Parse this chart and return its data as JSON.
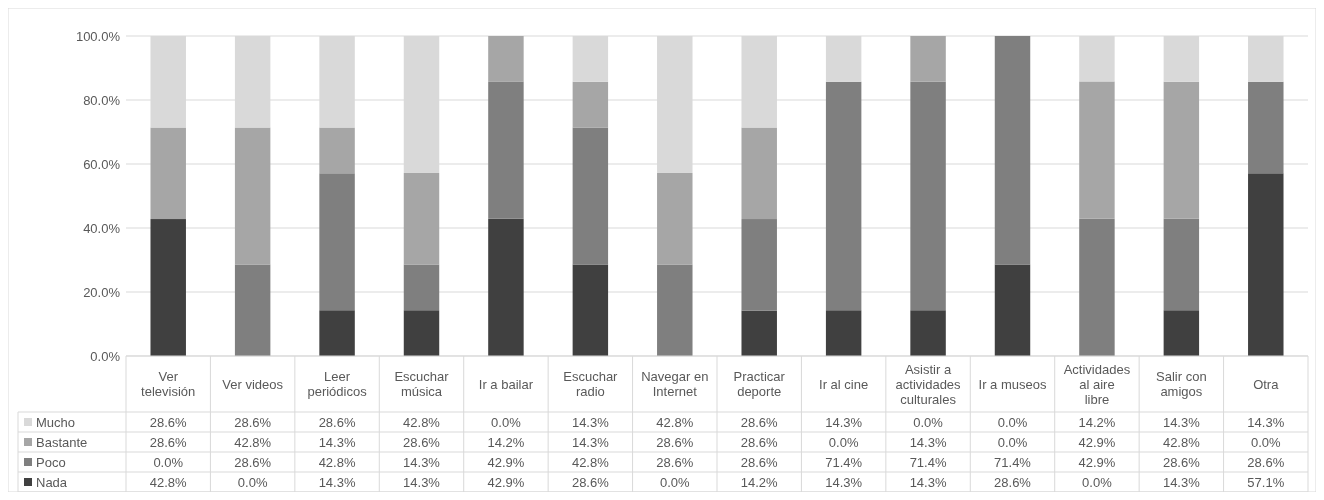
{
  "chart_data": {
    "type": "bar",
    "stacked": true,
    "categories": [
      "Ver televisión",
      "Ver videos",
      "Leer periódicos",
      "Escuchar música",
      "Ir a bailar",
      "Escuchar radio",
      "Navegar en Internet",
      "Practicar deporte",
      "Ir al cine",
      "Asistir a actividades culturales",
      "Ir a museos",
      "Actividades al aire libre",
      "Salir con amigos",
      "Otra"
    ],
    "series": [
      {
        "name": "Nada",
        "color": "#404040",
        "values": [
          42.8,
          0.0,
          14.3,
          14.3,
          42.9,
          28.6,
          0.0,
          14.2,
          14.3,
          14.3,
          28.6,
          0.0,
          14.3,
          57.1
        ],
        "value_labels": [
          "42.8%",
          "0.0%",
          "14.3%",
          "14.3%",
          "42.9%",
          "28.6%",
          "0.0%",
          "14.2%",
          "14.3%",
          "14.3%",
          "28.6%",
          "0.0%",
          "14.3%",
          "57.1%"
        ]
      },
      {
        "name": "Poco",
        "color": "#7f7f7f",
        "values": [
          0.0,
          28.6,
          42.8,
          14.3,
          42.9,
          42.8,
          28.6,
          28.6,
          71.4,
          71.4,
          71.4,
          42.9,
          28.6,
          28.6
        ],
        "value_labels": [
          "0.0%",
          "28.6%",
          "42.8%",
          "14.3%",
          "42.9%",
          "42.8%",
          "28.6%",
          "28.6%",
          "71.4%",
          "71.4%",
          "71.4%",
          "42.9%",
          "28.6%",
          "28.6%"
        ]
      },
      {
        "name": "Bastante",
        "color": "#a6a6a6",
        "values": [
          28.6,
          42.8,
          14.3,
          28.6,
          14.2,
          14.3,
          28.6,
          28.6,
          0.0,
          14.3,
          0.0,
          42.9,
          42.8,
          0.0
        ],
        "value_labels": [
          "28.6%",
          "42.8%",
          "14.3%",
          "28.6%",
          "14.2%",
          "14.3%",
          "28.6%",
          "28.6%",
          "0.0%",
          "14.3%",
          "0.0%",
          "42.9%",
          "42.8%",
          "0.0%"
        ]
      },
      {
        "name": "Mucho",
        "color": "#d9d9d9",
        "values": [
          28.6,
          28.6,
          28.6,
          42.8,
          0.0,
          14.3,
          42.8,
          28.6,
          14.3,
          0.0,
          0.0,
          14.2,
          14.3,
          14.3
        ],
        "value_labels": [
          "28.6%",
          "28.6%",
          "28.6%",
          "42.8%",
          "0.0%",
          "14.3%",
          "42.8%",
          "28.6%",
          "14.3%",
          "0.0%",
          "0.0%",
          "14.2%",
          "14.3%",
          "14.3%"
        ]
      }
    ],
    "ylim": [
      0,
      100
    ],
    "yticks": [
      {
        "value": 0,
        "label": "0.0%"
      },
      {
        "value": 20,
        "label": "20.0%"
      },
      {
        "value": 40,
        "label": "40.0%"
      },
      {
        "value": 60,
        "label": "60.0%"
      },
      {
        "value": 80,
        "label": "80.0%"
      },
      {
        "value": 100,
        "label": "100.0%"
      }
    ],
    "grid": "y",
    "legend": "bottom"
  }
}
